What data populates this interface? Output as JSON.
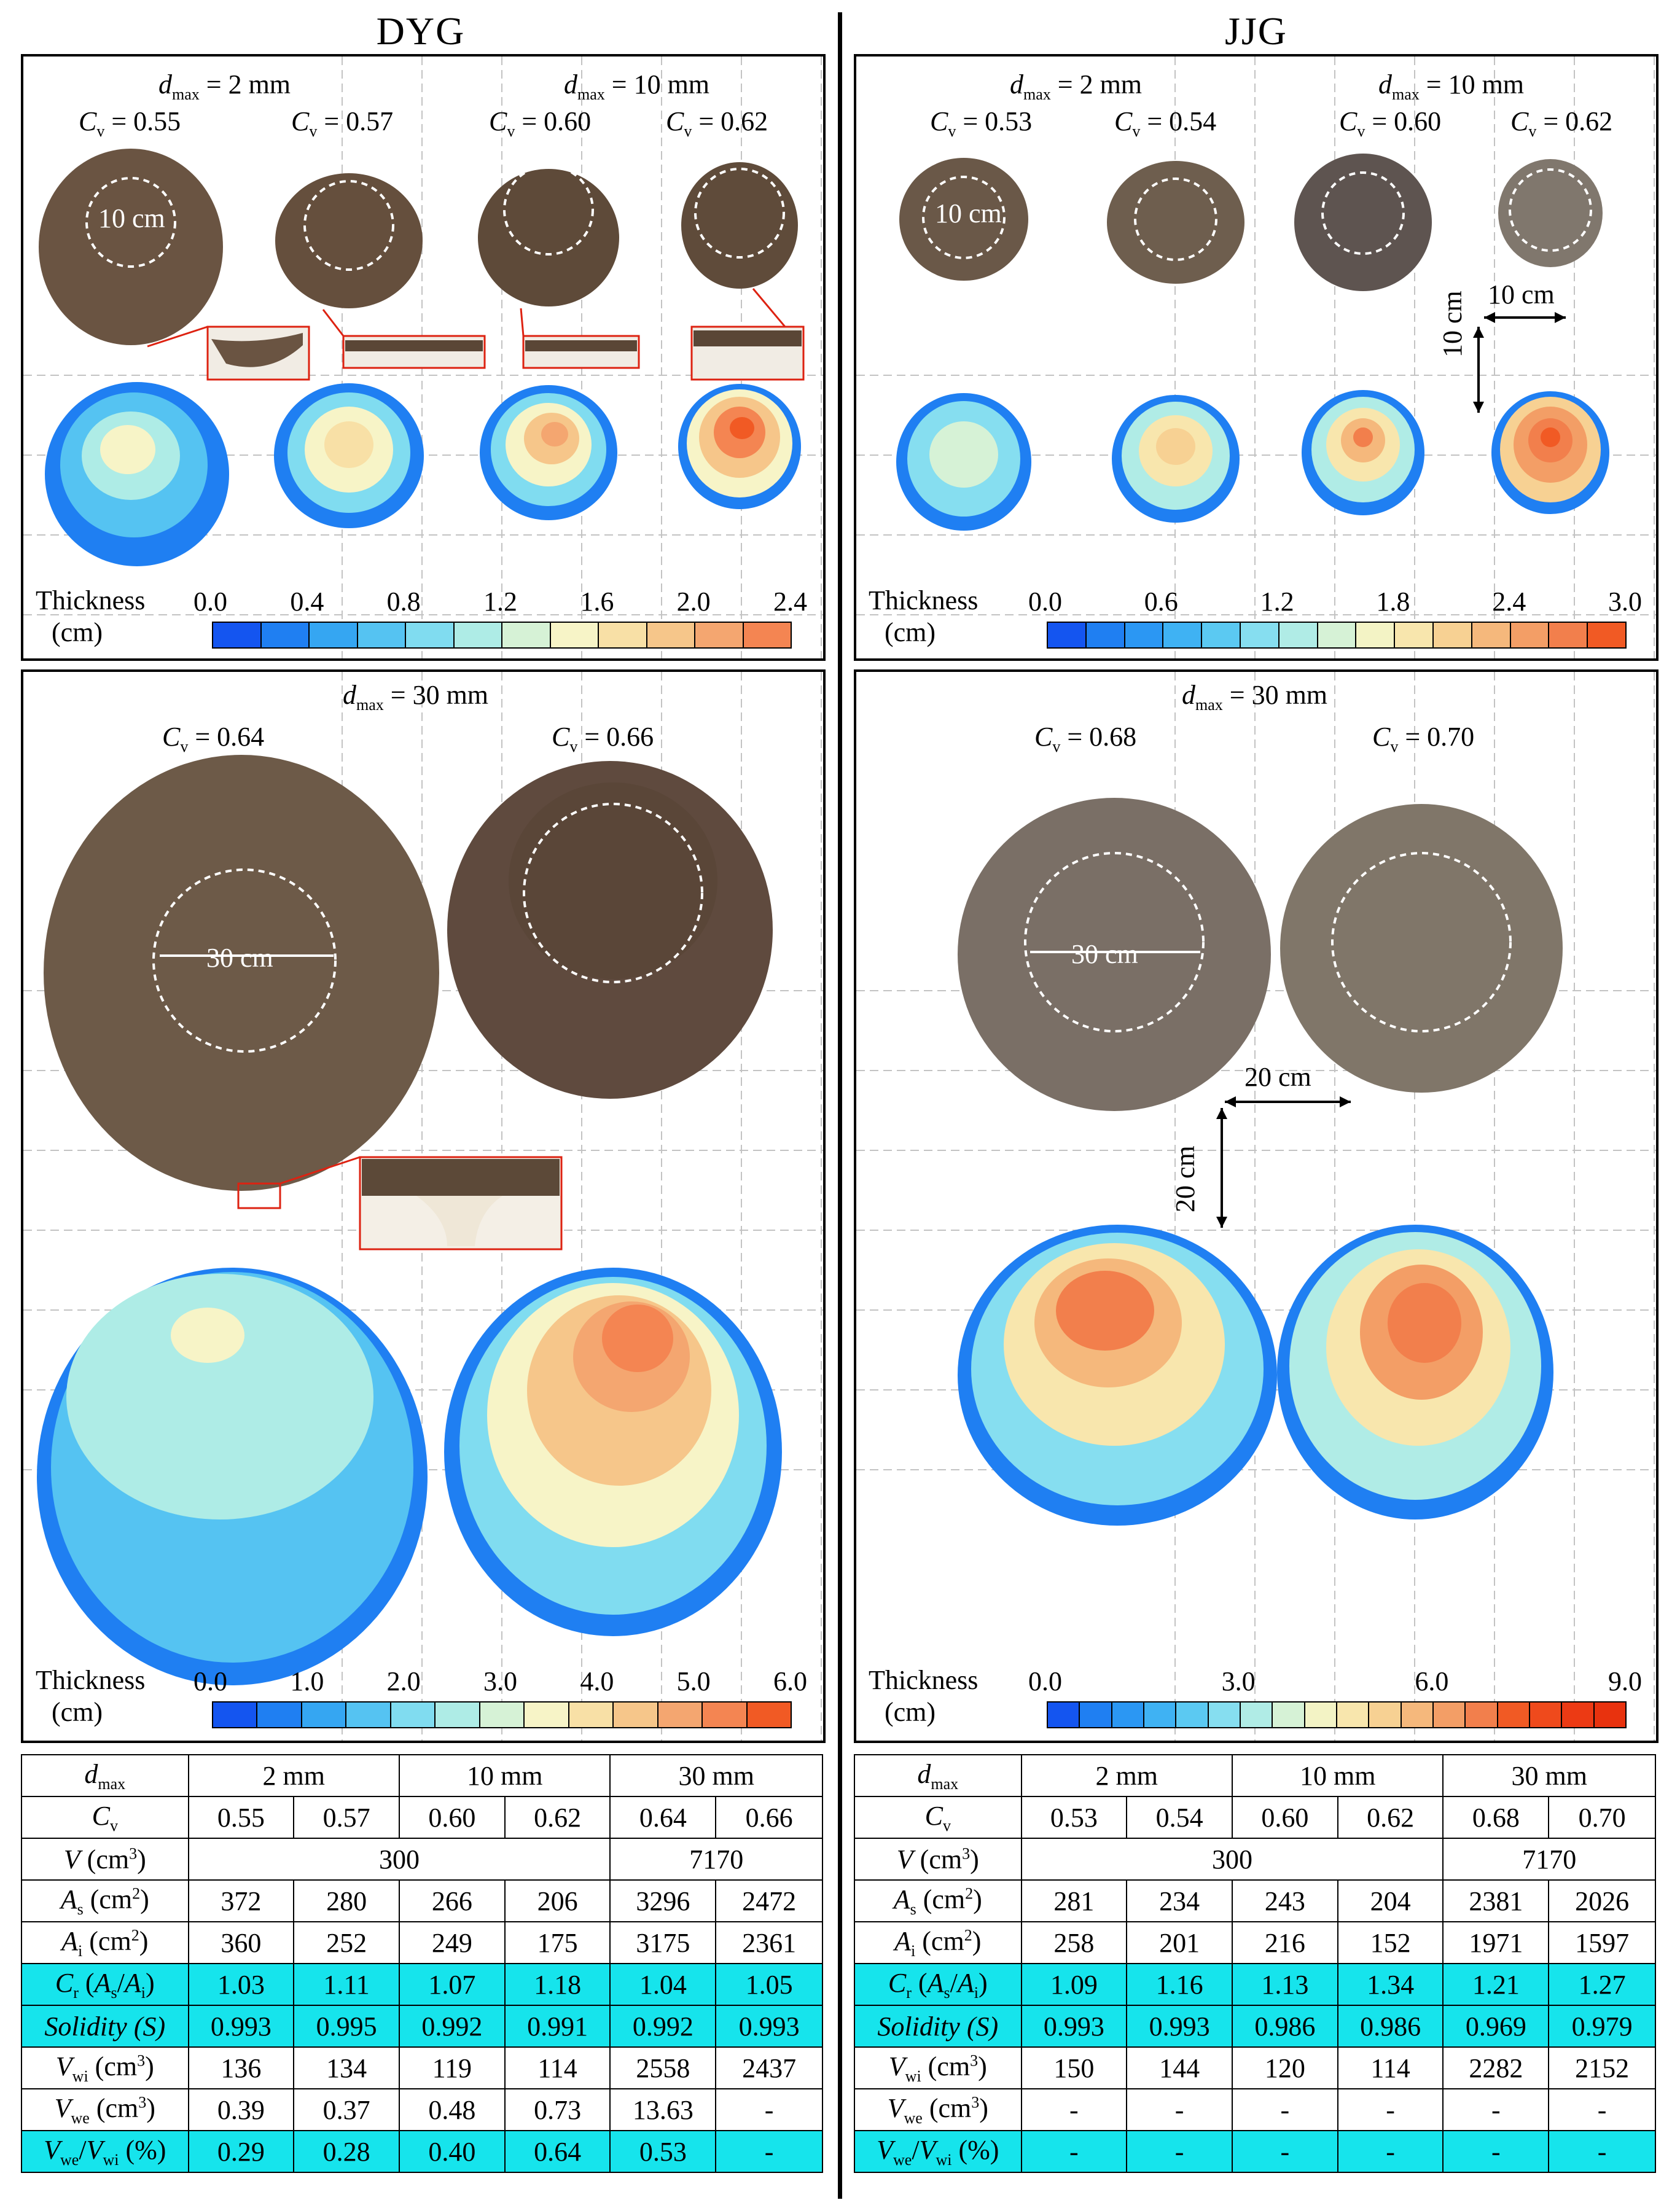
{
  "left": {
    "title": "DYG",
    "top_panel": {
      "dmax_a": "= 2 mm",
      "dmax_b": "= 10 mm",
      "cv": [
        "= 0.55",
        "= 0.57",
        "= 0.60",
        "= 0.62"
      ],
      "scale_text": "10 cm",
      "legend_title": "Thickness",
      "legend_unit": "(cm)",
      "ticks": [
        "0.0",
        "0.4",
        "0.8",
        "1.2",
        "1.6",
        "2.0",
        "2.4"
      ]
    },
    "bottom_panel": {
      "dmax": "= 30 mm",
      "cv": [
        "= 0.64",
        "= 0.66"
      ],
      "scale_text": "30 cm",
      "legend_title": "Thickness",
      "legend_unit": "(cm)",
      "ticks": [
        "0.0",
        "1.0",
        "2.0",
        "3.0",
        "4.0",
        "5.0",
        "6.0"
      ]
    },
    "table": {
      "rows": [
        {
          "label": "d",
          "sub": "max",
          "cells": [
            "2 mm",
            "10 mm",
            "30 mm"
          ],
          "span": true
        },
        {
          "label": "C",
          "sub": "v",
          "cells": [
            "0.55",
            "0.57",
            "0.60",
            "0.62",
            "0.64",
            "0.66"
          ]
        },
        {
          "label": "V (cm",
          "sup": "3",
          "cells": [
            "300",
            "7170"
          ],
          "span2": true
        },
        {
          "label": "A",
          "sub": "s",
          "unit": "(cm",
          "cells": [
            "372",
            "280",
            "266",
            "206",
            "3296",
            "2472"
          ]
        },
        {
          "label": "A",
          "sub": "i",
          "unit": "(cm",
          "cells": [
            "360",
            "252",
            "249",
            "175",
            "3175",
            "2361"
          ]
        },
        {
          "label": "C",
          "sub": "r",
          "unit": "(A",
          "cells": [
            "1.03",
            "1.11",
            "1.07",
            "1.18",
            "1.04",
            "1.05"
          ],
          "hl": true
        },
        {
          "label": "Solidity (S)",
          "cells": [
            "0.993",
            "0.995",
            "0.992",
            "0.991",
            "0.992",
            "0.993"
          ],
          "hl": true
        },
        {
          "label": "V",
          "sub": "wi",
          "unit": "(cm",
          "cells": [
            "136",
            "134",
            "119",
            "114",
            "2558",
            "2437"
          ]
        },
        {
          "label": "V",
          "sub": "we",
          "unit": "(cm",
          "cells": [
            "0.39",
            "0.37",
            "0.48",
            "0.73",
            "13.63",
            "-"
          ]
        },
        {
          "label": "V",
          "sub": "we",
          "unit": "/V",
          "cells": [
            "0.29",
            "0.28",
            "0.40",
            "0.64",
            "0.53",
            "-"
          ],
          "hl": true
        }
      ]
    }
  },
  "right": {
    "title": "JJG",
    "top_panel": {
      "dmax_a": "= 2 mm",
      "dmax_b": "= 10 mm",
      "cv": [
        "= 0.53",
        "= 0.54",
        "= 0.60",
        "= 0.62"
      ],
      "scale_text": "10 cm",
      "scale_h": "10 cm",
      "scale_v": "10 cm",
      "legend_title": "Thickness",
      "legend_unit": "(cm)",
      "ticks": [
        "0.0",
        "0.6",
        "1.2",
        "1.8",
        "2.4",
        "3.0"
      ]
    },
    "bottom_panel": {
      "dmax": "= 30 mm",
      "cv": [
        "= 0.68",
        "= 0.70"
      ],
      "scale_text": "30 cm",
      "scale_h": "20 cm",
      "scale_v": "20 cm",
      "legend_title": "Thickness",
      "legend_unit": "(cm)",
      "ticks": [
        "0.0",
        "3.0",
        "6.0",
        "9.0"
      ]
    },
    "table": {
      "rows": [
        {
          "cells": [
            "2 mm",
            "10 mm",
            "30 mm"
          ]
        },
        {
          "cells": [
            "0.53",
            "0.54",
            "0.60",
            "0.62",
            "0.68",
            "0.70"
          ]
        },
        {
          "cells": [
            "300",
            "7170"
          ]
        },
        {
          "cells": [
            "281",
            "234",
            "243",
            "204",
            "2381",
            "2026"
          ]
        },
        {
          "cells": [
            "258",
            "201",
            "216",
            "152",
            "1971",
            "1597"
          ]
        },
        {
          "cells": [
            "1.09",
            "1.16",
            "1.13",
            "1.34",
            "1.21",
            "1.27"
          ]
        },
        {
          "cells": [
            "0.993",
            "0.993",
            "0.986",
            "0.986",
            "0.969",
            "0.979"
          ]
        },
        {
          "cells": [
            "150",
            "144",
            "120",
            "114",
            "2282",
            "2152"
          ]
        },
        {
          "cells": [
            "-",
            "-",
            "-",
            "-",
            "-",
            "-"
          ]
        },
        {
          "cells": [
            "-",
            "-",
            "-",
            "-",
            "-",
            "-"
          ]
        }
      ]
    }
  },
  "colors": {
    "mud_dyg": "#6b5542",
    "mud_jjg": "#7a6f64",
    "highlight": "#16e4ec",
    "scale_left": [
      "#1455f0",
      "#1f7ff2",
      "#35a6f2",
      "#55c3f2",
      "#80dcf0",
      "#aeece6",
      "#d6f2d6",
      "#f7f4c7",
      "#f8e0a6",
      "#f6c68a",
      "#f4a670",
      "#f48552",
      "#f15a24"
    ],
    "scale_right": [
      "#1455f0",
      "#1f7ff2",
      "#2b97f3",
      "#3fb2f3",
      "#5bc9f2",
      "#86def0",
      "#b0ece6",
      "#d6f2d6",
      "#f3f3c5",
      "#f8e6ad",
      "#f7d193",
      "#f5b87c",
      "#f39e66",
      "#f27f4c",
      "#f15a24"
    ]
  }
}
